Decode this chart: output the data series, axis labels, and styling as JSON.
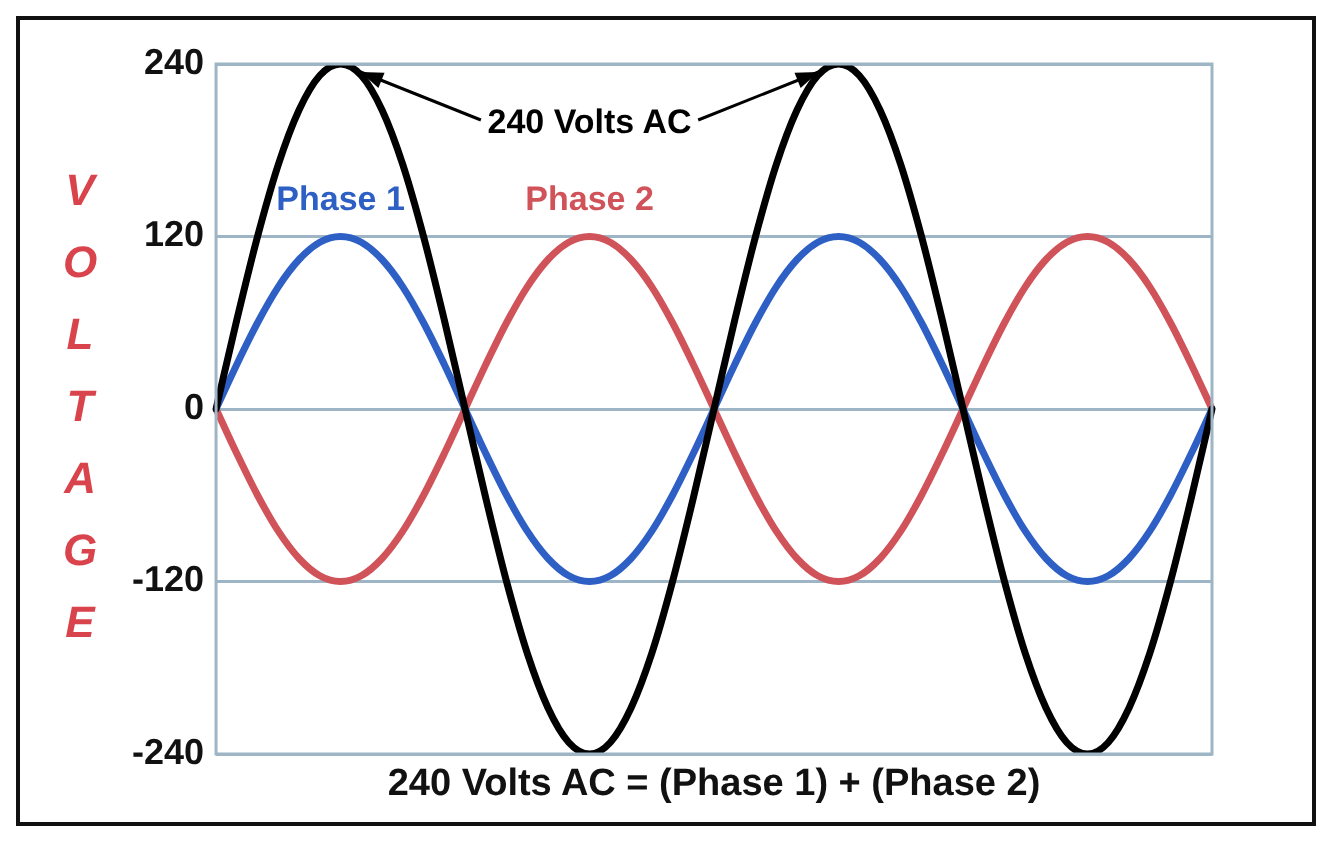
{
  "chart_data": {
    "type": "line",
    "xlabel": "240 Volts AC = (Phase 1) + (Phase 2)",
    "ylabel": "VOLTAGE",
    "categories": [
      null,
      null,
      null,
      null,
      null,
      null,
      null,
      null,
      null,
      null,
      null,
      null,
      null,
      null,
      null,
      null,
      null,
      null,
      null,
      null,
      null,
      null,
      null,
      null,
      null,
      null,
      null,
      null,
      null,
      null,
      null,
      null,
      null,
      null,
      null,
      null,
      null,
      null,
      null,
      null,
      null,
      null,
      null,
      null,
      null,
      null,
      null,
      null,
      null
    ],
    "series": [
      {
        "name": "240 Volts AC",
        "color": "#000000",
        "values": [
          0,
          62,
          120,
          170,
          208,
          232,
          240,
          232,
          208,
          170,
          120,
          62,
          0,
          -62,
          -120,
          -170,
          -208,
          -232,
          -240,
          -232,
          -208,
          -170,
          -120,
          -62,
          0,
          62,
          120,
          170,
          208,
          232,
          240,
          232,
          208,
          170,
          120,
          62,
          0,
          -62,
          -120,
          -170,
          -208,
          -232,
          -240,
          -232,
          -208,
          -170,
          -120,
          -62,
          0
        ]
      },
      {
        "name": "Phase 1",
        "color": "#2e5fc4",
        "values": [
          0,
          31,
          60,
          85,
          104,
          116,
          120,
          116,
          104,
          85,
          60,
          31,
          0,
          -31,
          -60,
          -85,
          -104,
          -116,
          -120,
          -116,
          -104,
          -85,
          -60,
          -31,
          0,
          31,
          60,
          85,
          104,
          116,
          120,
          116,
          104,
          85,
          60,
          31,
          0,
          -31,
          -60,
          -85,
          -104,
          -116,
          -120,
          -116,
          -104,
          -85,
          -60,
          -31,
          0
        ]
      },
      {
        "name": "Phase 2",
        "color": "#d0535a",
        "values": [
          0,
          -31,
          -60,
          -85,
          -104,
          -116,
          -120,
          -116,
          -104,
          -85,
          -60,
          -31,
          0,
          31,
          60,
          85,
          104,
          116,
          120,
          116,
          104,
          85,
          60,
          31,
          0,
          -31,
          -60,
          -85,
          -104,
          -116,
          -120,
          -116,
          -104,
          -85,
          -60,
          -31,
          0,
          31,
          60,
          85,
          104,
          116,
          120,
          116,
          104,
          85,
          60,
          31,
          0
        ]
      }
    ],
    "ylim": [
      -240,
      240
    ],
    "yticks": [
      -240,
      -120,
      0,
      120,
      240
    ],
    "grid": "y",
    "tick_labels": "y",
    "marker": "none",
    "line_style": "solid"
  }
}
